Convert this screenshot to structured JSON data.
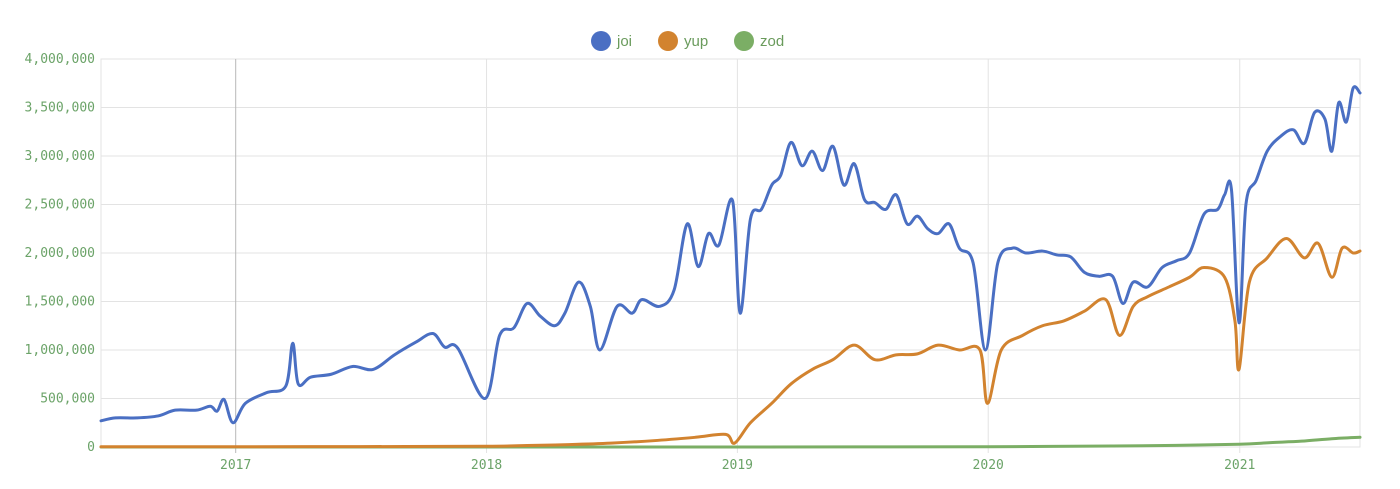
{
  "chart_data": {
    "type": "line",
    "title": "",
    "xlabel": "",
    "ylabel": "",
    "legend_position": "top-center",
    "grid": true,
    "x_range": [
      "2016-06-19",
      "2021-06-25"
    ],
    "ylim": [
      0,
      4000000
    ],
    "y_ticks": [
      0,
      500000,
      1000000,
      1500000,
      2000000,
      2500000,
      3000000,
      3500000,
      4000000
    ],
    "y_tick_labels": [
      "0",
      "500,000",
      "1,000,000",
      "1,500,000",
      "2,000,000",
      "2,500,000",
      "3,000,000",
      "3,500,000",
      "4,000,000"
    ],
    "x_tick_labels": [
      "2017",
      "2018",
      "2019",
      "2020",
      "2021"
    ],
    "x_tick_dates": [
      "2017-01-01",
      "2018-01-01",
      "2019-01-01",
      "2020-01-01",
      "2021-01-01"
    ],
    "series": [
      {
        "name": "joi",
        "color": "#4a6fc3",
        "points": [
          [
            "2016-06-19",
            270000
          ],
          [
            "2016-07-10",
            300000
          ],
          [
            "2016-08-10",
            300000
          ],
          [
            "2016-09-10",
            320000
          ],
          [
            "2016-10-05",
            380000
          ],
          [
            "2016-11-05",
            380000
          ],
          [
            "2016-11-25",
            420000
          ],
          [
            "2016-12-05",
            370000
          ],
          [
            "2016-12-15",
            490000
          ],
          [
            "2016-12-28",
            250000
          ],
          [
            "2017-01-15",
            450000
          ],
          [
            "2017-02-15",
            560000
          ],
          [
            "2017-03-15",
            630000
          ],
          [
            "2017-03-25",
            1070000
          ],
          [
            "2017-04-02",
            650000
          ],
          [
            "2017-04-20",
            720000
          ],
          [
            "2017-05-20",
            750000
          ],
          [
            "2017-06-20",
            830000
          ],
          [
            "2017-07-20",
            800000
          ],
          [
            "2017-08-20",
            950000
          ],
          [
            "2017-09-20",
            1080000
          ],
          [
            "2017-10-15",
            1170000
          ],
          [
            "2017-11-01",
            1030000
          ],
          [
            "2017-11-20",
            1020000
          ],
          [
            "2017-12-30",
            500000
          ],
          [
            "2018-01-20",
            1150000
          ],
          [
            "2018-02-10",
            1230000
          ],
          [
            "2018-03-01",
            1480000
          ],
          [
            "2018-03-20",
            1350000
          ],
          [
            "2018-04-10",
            1250000
          ],
          [
            "2018-04-25",
            1380000
          ],
          [
            "2018-05-15",
            1700000
          ],
          [
            "2018-06-01",
            1450000
          ],
          [
            "2018-06-15",
            1000000
          ],
          [
            "2018-07-10",
            1450000
          ],
          [
            "2018-08-01",
            1380000
          ],
          [
            "2018-08-15",
            1520000
          ],
          [
            "2018-09-10",
            1450000
          ],
          [
            "2018-10-01",
            1620000
          ],
          [
            "2018-10-20",
            2300000
          ],
          [
            "2018-11-05",
            1860000
          ],
          [
            "2018-11-20",
            2200000
          ],
          [
            "2018-12-05",
            2080000
          ],
          [
            "2018-12-25",
            2540000
          ],
          [
            "2019-01-05",
            1380000
          ],
          [
            "2019-01-20",
            2350000
          ],
          [
            "2019-02-05",
            2450000
          ],
          [
            "2019-02-20",
            2700000
          ],
          [
            "2019-03-05",
            2800000
          ],
          [
            "2019-03-20",
            3140000
          ],
          [
            "2019-04-05",
            2900000
          ],
          [
            "2019-04-20",
            3050000
          ],
          [
            "2019-05-05",
            2850000
          ],
          [
            "2019-05-20",
            3100000
          ],
          [
            "2019-06-05",
            2700000
          ],
          [
            "2019-06-20",
            2920000
          ],
          [
            "2019-07-05",
            2550000
          ],
          [
            "2019-07-20",
            2520000
          ],
          [
            "2019-08-05",
            2450000
          ],
          [
            "2019-08-20",
            2600000
          ],
          [
            "2019-09-05",
            2300000
          ],
          [
            "2019-09-20",
            2380000
          ],
          [
            "2019-10-05",
            2250000
          ],
          [
            "2019-10-20",
            2200000
          ],
          [
            "2019-11-05",
            2300000
          ],
          [
            "2019-11-20",
            2050000
          ],
          [
            "2019-12-10",
            1900000
          ],
          [
            "2019-12-28",
            1000000
          ],
          [
            "2020-01-15",
            1900000
          ],
          [
            "2020-02-05",
            2050000
          ],
          [
            "2020-02-25",
            2000000
          ],
          [
            "2020-03-20",
            2020000
          ],
          [
            "2020-04-10",
            1980000
          ],
          [
            "2020-04-30",
            1960000
          ],
          [
            "2020-05-20",
            1800000
          ],
          [
            "2020-06-10",
            1760000
          ],
          [
            "2020-06-30",
            1760000
          ],
          [
            "2020-07-15",
            1480000
          ],
          [
            "2020-07-30",
            1700000
          ],
          [
            "2020-08-20",
            1650000
          ],
          [
            "2020-09-10",
            1850000
          ],
          [
            "2020-10-01",
            1920000
          ],
          [
            "2020-10-20",
            2000000
          ],
          [
            "2020-11-10",
            2400000
          ],
          [
            "2020-11-30",
            2450000
          ],
          [
            "2020-12-10",
            2600000
          ],
          [
            "2020-12-20",
            2650000
          ],
          [
            "2020-12-31",
            1280000
          ],
          [
            "2021-01-10",
            2500000
          ],
          [
            "2021-01-25",
            2750000
          ],
          [
            "2021-02-10",
            3050000
          ],
          [
            "2021-03-01",
            3200000
          ],
          [
            "2021-03-20",
            3270000
          ],
          [
            "2021-04-05",
            3130000
          ],
          [
            "2021-04-20",
            3450000
          ],
          [
            "2021-05-05",
            3380000
          ],
          [
            "2021-05-15",
            3050000
          ],
          [
            "2021-05-25",
            3550000
          ],
          [
            "2021-06-05",
            3350000
          ],
          [
            "2021-06-15",
            3700000
          ],
          [
            "2021-06-25",
            3650000
          ]
        ]
      },
      {
        "name": "yup",
        "color": "#d2832f",
        "points": [
          [
            "2016-06-19",
            2000
          ],
          [
            "2016-12-31",
            3000
          ],
          [
            "2017-06-30",
            4000
          ],
          [
            "2017-12-31",
            8000
          ],
          [
            "2018-03-01",
            15000
          ],
          [
            "2018-05-01",
            25000
          ],
          [
            "2018-07-01",
            40000
          ],
          [
            "2018-09-01",
            65000
          ],
          [
            "2018-11-01",
            100000
          ],
          [
            "2018-12-15",
            130000
          ],
          [
            "2018-12-28",
            40000
          ],
          [
            "2019-01-20",
            250000
          ],
          [
            "2019-02-20",
            450000
          ],
          [
            "2019-03-20",
            650000
          ],
          [
            "2019-04-20",
            800000
          ],
          [
            "2019-05-20",
            900000
          ],
          [
            "2019-06-20",
            1050000
          ],
          [
            "2019-07-20",
            900000
          ],
          [
            "2019-08-20",
            950000
          ],
          [
            "2019-09-20",
            960000
          ],
          [
            "2019-10-20",
            1050000
          ],
          [
            "2019-11-20",
            1000000
          ],
          [
            "2019-12-20",
            1000000
          ],
          [
            "2019-12-31",
            450000
          ],
          [
            "2020-01-20",
            1000000
          ],
          [
            "2020-02-20",
            1150000
          ],
          [
            "2020-03-20",
            1250000
          ],
          [
            "2020-04-20",
            1300000
          ],
          [
            "2020-05-20",
            1400000
          ],
          [
            "2020-06-20",
            1520000
          ],
          [
            "2020-07-10",
            1150000
          ],
          [
            "2020-07-30",
            1450000
          ],
          [
            "2020-08-20",
            1550000
          ],
          [
            "2020-09-20",
            1650000
          ],
          [
            "2020-10-20",
            1750000
          ],
          [
            "2020-11-10",
            1850000
          ],
          [
            "2020-12-10",
            1750000
          ],
          [
            "2020-12-25",
            1300000
          ],
          [
            "2020-12-31",
            800000
          ],
          [
            "2021-01-15",
            1700000
          ],
          [
            "2021-02-10",
            1950000
          ],
          [
            "2021-03-10",
            2150000
          ],
          [
            "2021-04-05",
            1950000
          ],
          [
            "2021-04-25",
            2100000
          ],
          [
            "2021-05-15",
            1750000
          ],
          [
            "2021-05-30",
            2050000
          ],
          [
            "2021-06-15",
            2000000
          ],
          [
            "2021-06-25",
            2020000
          ]
        ]
      },
      {
        "name": "zod",
        "color": "#7bae65",
        "points": [
          [
            "2016-06-19",
            0
          ],
          [
            "2018-06-30",
            0
          ],
          [
            "2019-06-30",
            1000
          ],
          [
            "2019-12-31",
            3000
          ],
          [
            "2020-03-31",
            6000
          ],
          [
            "2020-06-30",
            10000
          ],
          [
            "2020-09-30",
            17000
          ],
          [
            "2020-12-31",
            28000
          ],
          [
            "2021-02-15",
            45000
          ],
          [
            "2021-04-01",
            60000
          ],
          [
            "2021-05-15",
            85000
          ],
          [
            "2021-06-25",
            100000
          ]
        ]
      }
    ]
  }
}
